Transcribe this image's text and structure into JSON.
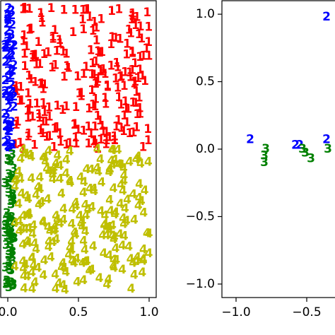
{
  "chart_data": [
    {
      "type": "scatter",
      "panel": "left",
      "title": "",
      "xlabel": "",
      "ylabel": "",
      "xlim": [
        -0.05,
        1.05
      ],
      "ylim": [
        -1.05,
        1.05
      ],
      "xticks": [
        {
          "value": 0.0,
          "label": "0.0"
        },
        {
          "value": 0.5,
          "label": "0.5"
        },
        {
          "value": 1.0,
          "label": "1.0"
        }
      ],
      "yticks": [],
      "grid": false,
      "marker": "digit label",
      "series": [
        {
          "label": "1",
          "color": "#ff0000",
          "region": {
            "x": [
              0.05,
              1.0
            ],
            "y": [
              0.0,
              1.0
            ]
          },
          "count": 230
        },
        {
          "label": "2",
          "color": "#0000ff",
          "region": {
            "x": [
              -0.02,
              0.05
            ],
            "y": [
              0.0,
              1.0
            ]
          },
          "count": 60
        },
        {
          "label": "3",
          "color": "#008000",
          "region": {
            "x": [
              -0.02,
              0.05
            ],
            "y": [
              -1.0,
              0.0
            ]
          },
          "count": 60
        },
        {
          "label": "4",
          "color": "#bfbf00",
          "region": {
            "x": [
              0.05,
              1.0
            ],
            "y": [
              -1.0,
              0.0
            ]
          },
          "count": 230
        }
      ]
    },
    {
      "type": "scatter",
      "panel": "right",
      "title": "",
      "xlabel": "",
      "ylabel": "",
      "xlim": [
        -1.1,
        -0.2
      ],
      "ylim": [
        -1.1,
        1.1
      ],
      "xticks": [
        {
          "value": -1.0,
          "label": "−1.0"
        },
        {
          "value": -0.5,
          "label": "−0.5"
        }
      ],
      "yticks": [
        {
          "value": 1.0,
          "label": "1.0"
        },
        {
          "value": 0.5,
          "label": "0.5"
        },
        {
          "value": 0.0,
          "label": "0.0"
        },
        {
          "value": -0.5,
          "label": "−0.5"
        },
        {
          "value": -1.0,
          "label": "−1.0"
        }
      ],
      "grid": false,
      "marker": "digit label",
      "series": [
        {
          "label": "2",
          "color": "#0000ff",
          "points": [
            [
              -0.9,
              0.07
            ],
            [
              -0.58,
              0.03
            ],
            [
              -0.55,
              0.03
            ],
            [
              -0.36,
              0.07
            ],
            [
              -0.36,
              0.98
            ]
          ]
        },
        {
          "label": "3",
          "color": "#008000",
          "points": [
            [
              -0.79,
              0.0
            ],
            [
              -0.8,
              -0.05
            ],
            [
              -0.8,
              -0.1
            ],
            [
              -0.53,
              0.0
            ],
            [
              -0.51,
              -0.03
            ],
            [
              -0.47,
              -0.07
            ],
            [
              -0.35,
              0.0
            ]
          ]
        }
      ]
    }
  ]
}
